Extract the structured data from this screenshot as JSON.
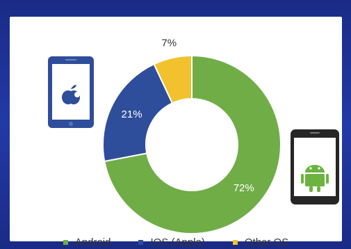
{
  "chart_data": {
    "type": "pie",
    "style": "donut",
    "categories": [
      "Android",
      "IOS (Apple)",
      "Other OS"
    ],
    "values": [
      72,
      21,
      7
    ],
    "value_labels": [
      "72%",
      "21%",
      "7%"
    ],
    "colors": [
      "#70ad47",
      "#2e4d9a",
      "#f2c12e"
    ],
    "legend_placement": "bottom"
  },
  "icons": {
    "apple_phone": "apple-phone-icon",
    "android_phone": "android-phone-icon"
  }
}
